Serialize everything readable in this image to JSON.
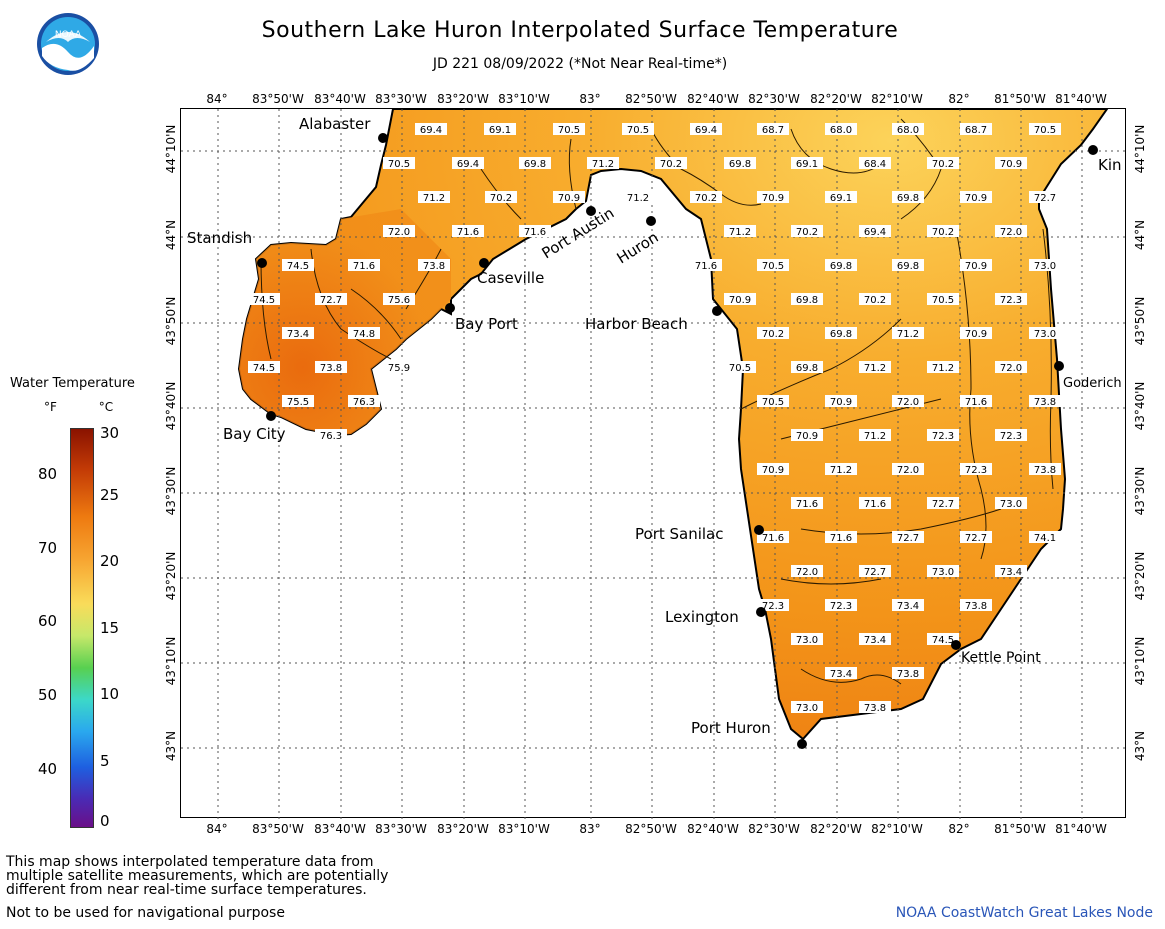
{
  "header": {
    "title": "Southern Lake Huron Interpolated Surface Temperature",
    "subtitle": "JD 221 08/09/2022 (*Not Near Real-time*)",
    "logo_text": "NOAA"
  },
  "axes": {
    "lon_labels": [
      "84°",
      "83°50'W",
      "83°40'W",
      "83°30'W",
      "83°20'W",
      "83°10'W",
      "83°",
      "82°50'W",
      "82°40'W",
      "82°30'W",
      "82°20'W",
      "82°10'W",
      "82°",
      "81°50'W",
      "81°40'W"
    ],
    "lat_labels": [
      "44°10'N",
      "44°N",
      "43°50'N",
      "43°40'N",
      "43°30'N",
      "43°20'N",
      "43°10'N",
      "43°N"
    ]
  },
  "places": [
    {
      "name": "Alabaster"
    },
    {
      "name": "Standish"
    },
    {
      "name": "Caseville"
    },
    {
      "name": "Port Austin"
    },
    {
      "name": "Huron"
    },
    {
      "name": "Bay Port"
    },
    {
      "name": "Harbor Beach"
    },
    {
      "name": "Bay City"
    },
    {
      "name": "Kin"
    },
    {
      "name": "Goderich"
    },
    {
      "name": "Port Sanilac"
    },
    {
      "name": "Lexington"
    },
    {
      "name": "Kettle Point"
    },
    {
      "name": "Port Huron"
    }
  ],
  "temps": [
    "69.4",
    "69.1",
    "70.5",
    "70.5",
    "69.4",
    "68.7",
    "68.0",
    "68.0",
    "68.7",
    "70.5",
    "70.5",
    "69.4",
    "69.8",
    "71.2",
    "70.2",
    "69.8",
    "69.1",
    "68.4",
    "70.2",
    "70.9",
    "71.2",
    "70.2",
    "70.9",
    "71.2",
    "70.2",
    "70.9",
    "69.1",
    "69.8",
    "70.9",
    "72.7",
    "72.0",
    "71.6",
    "71.6",
    "71.2",
    "70.2",
    "69.4",
    "70.2",
    "72.0",
    "74.5",
    "71.6",
    "73.8",
    "71.6",
    "70.5",
    "69.8",
    "69.8",
    "70.9",
    "73.0",
    "74.5",
    "72.7",
    "75.6",
    "70.9",
    "69.8",
    "70.2",
    "70.5",
    "72.3",
    "73.4",
    "74.8",
    "70.2",
    "69.8",
    "71.2",
    "70.9",
    "73.0",
    "74.5",
    "73.8",
    "75.9",
    "70.5",
    "69.8",
    "71.2",
    "71.2",
    "72.0",
    "75.5",
    "76.3",
    "70.5",
    "70.9",
    "72.0",
    "71.6",
    "73.8",
    "76.3",
    "70.9",
    "71.2",
    "72.3",
    "72.3",
    "70.9",
    "71.2",
    "72.0",
    "72.3",
    "73.8",
    "71.6",
    "71.6",
    "72.7",
    "73.0",
    "71.6",
    "71.6",
    "72.7",
    "72.7",
    "74.1",
    "72.0",
    "72.7",
    "73.0",
    "73.4",
    "72.3",
    "72.3",
    "73.4",
    "73.8",
    "73.0",
    "73.4",
    "74.5",
    "73.4",
    "73.8",
    "73.0",
    "73.8"
  ],
  "legend": {
    "title": "Water Temperature",
    "unit_f": "°F",
    "unit_c": "°C",
    "f_ticks": [
      "80",
      "70",
      "60",
      "50",
      "40"
    ],
    "c_ticks": [
      "30",
      "25",
      "20",
      "15",
      "10",
      "5",
      "0"
    ]
  },
  "footer": {
    "note_line1": "This map shows interpolated temperature data from",
    "note_line2": "multiple satellite measurements, which are potentially",
    "note_line3": "different from near real-time surface temperatures.",
    "note_line4": "Not to be used for navigational purpose",
    "credit": "NOAA CoastWatch Great Lakes Node"
  },
  "colors": {
    "water_warm": "#f59a1e",
    "water_cool": "#fbc34a",
    "water_hot": "#ee7a10",
    "land": "#ffffff"
  }
}
